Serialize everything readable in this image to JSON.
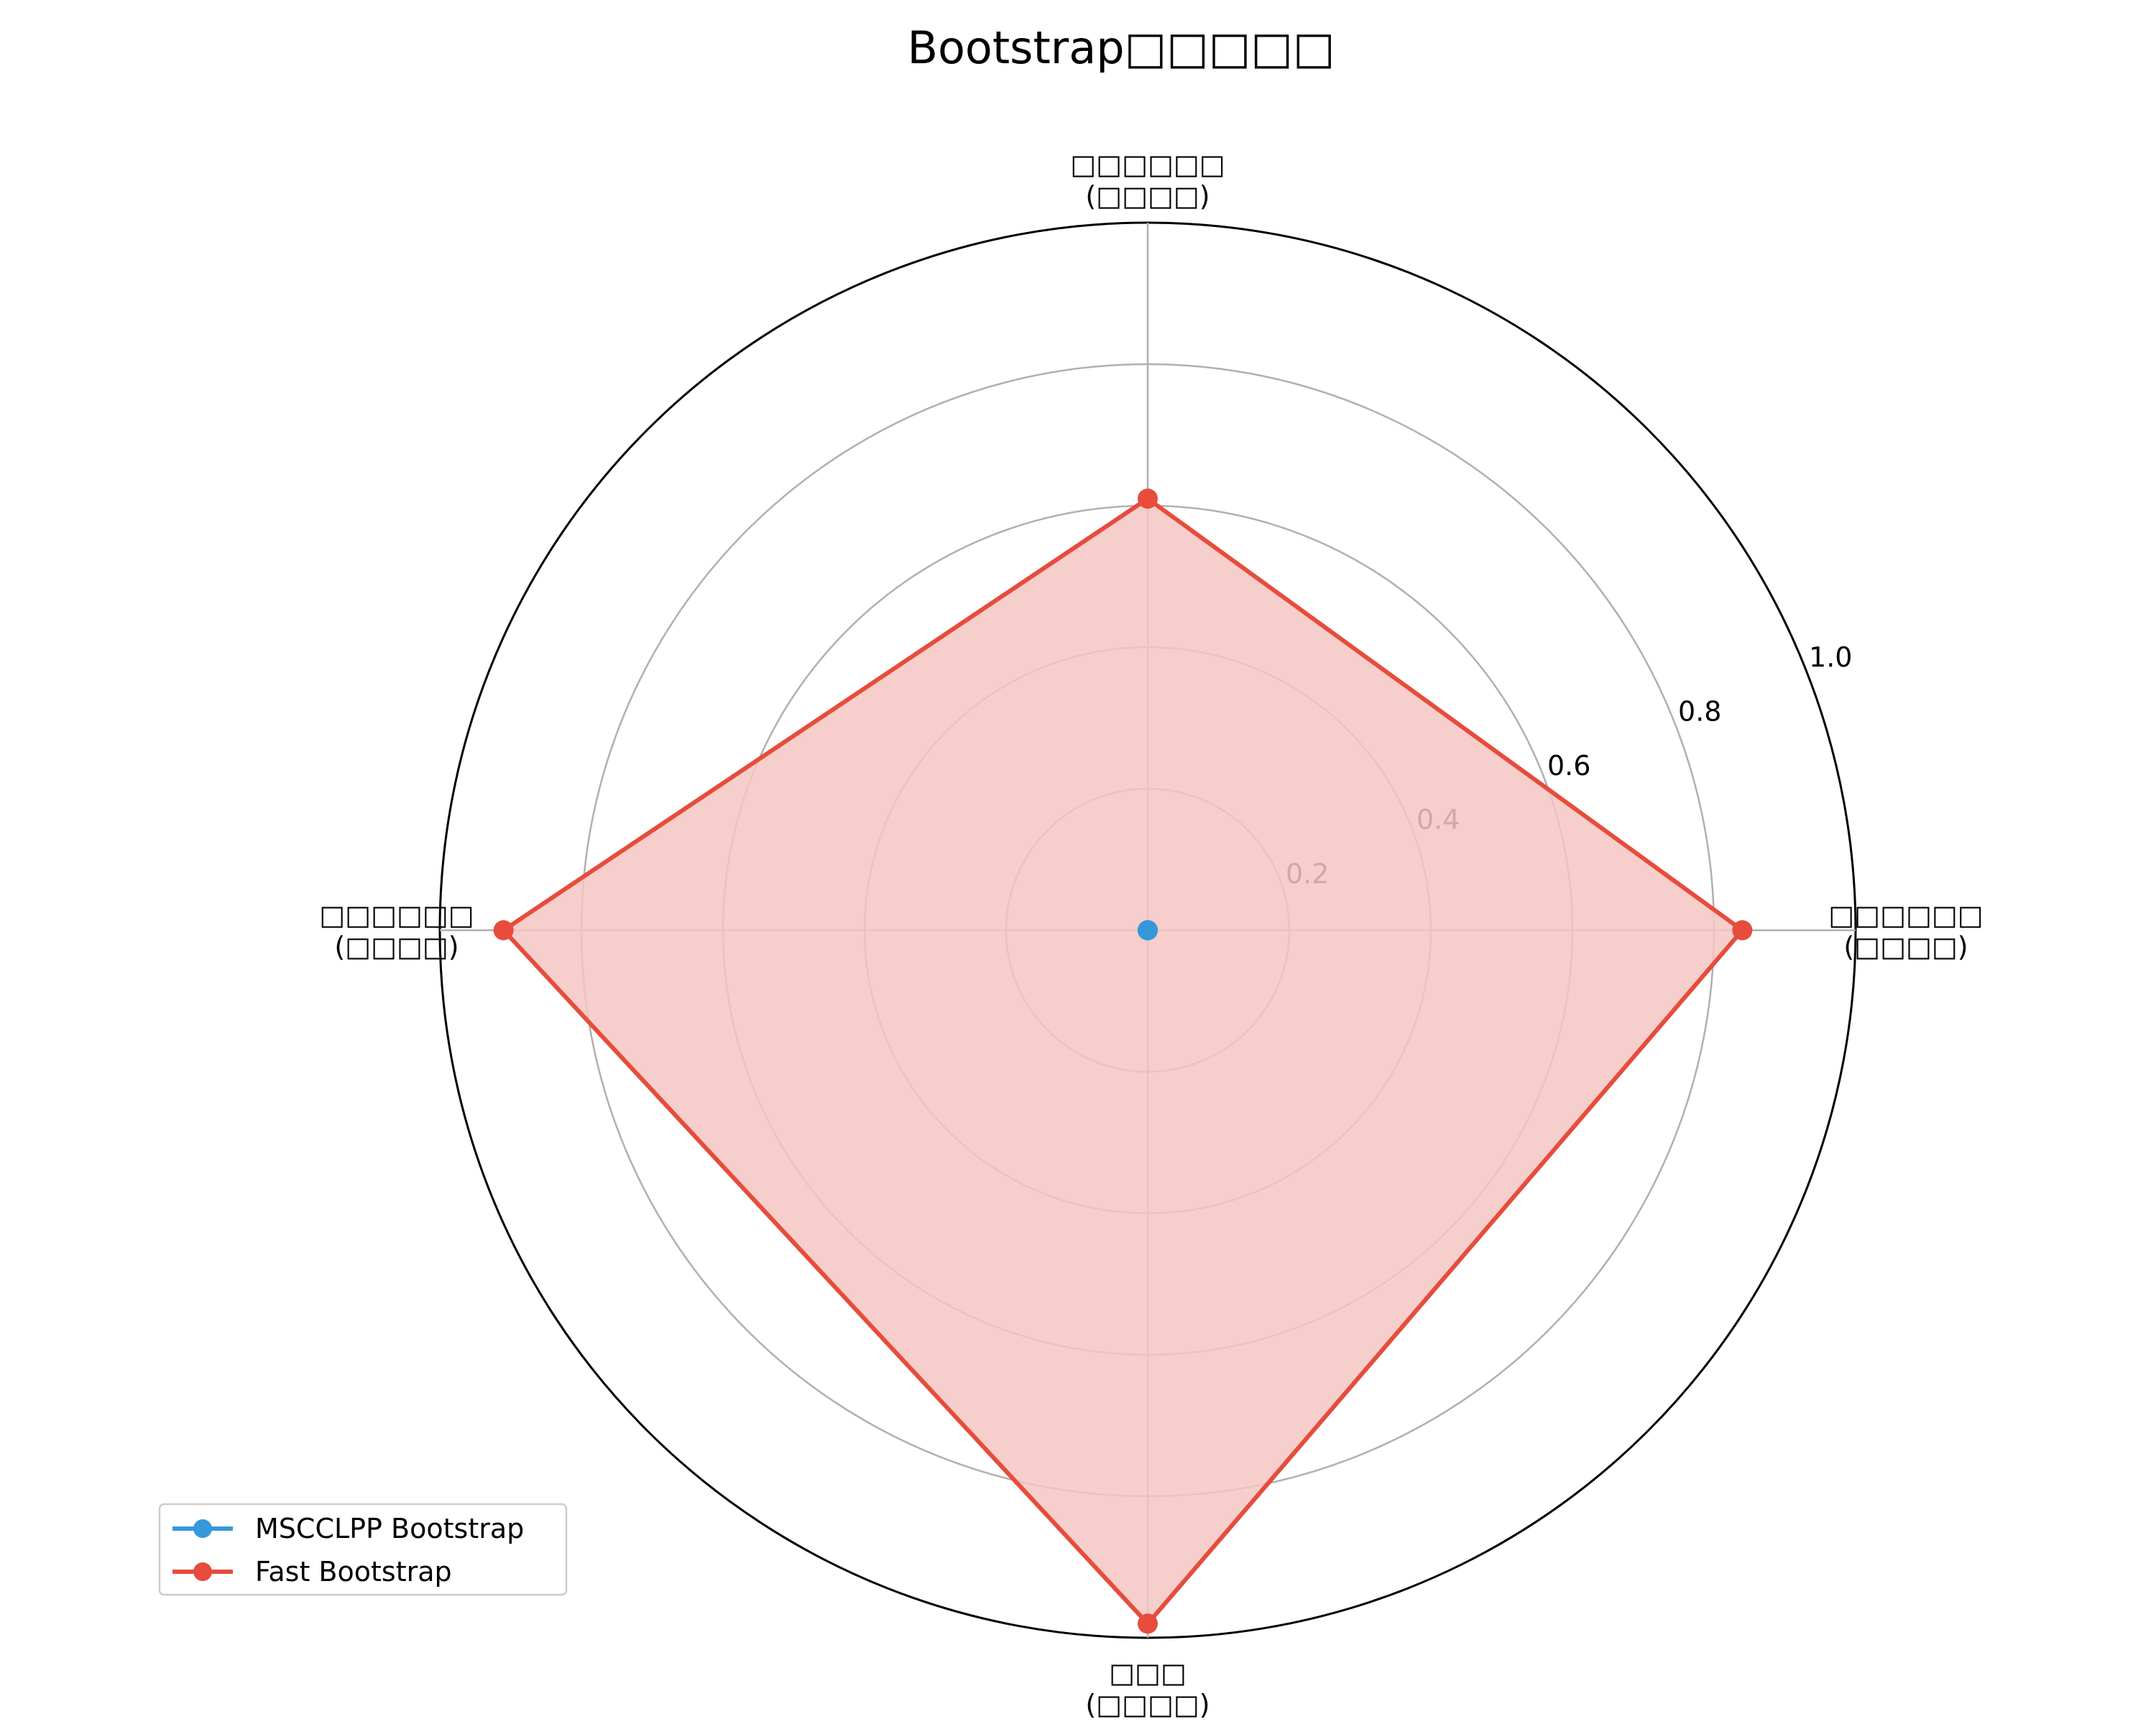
{
  "chart_data": {
    "type": "radar",
    "title": "Bootstrap□□□□□",
    "axes": [
      {
        "line1": "□□□□□□",
        "line2": "(□□□□)"
      },
      {
        "line1": "□□□□□□",
        "line2": "(□□□□)"
      },
      {
        "line1": "□□□",
        "line2": "(□□□□)"
      },
      {
        "line1": "□□□□□□",
        "line2": "(□□□□)"
      }
    ],
    "axis_order_note": "right, top, bottom, left",
    "rlim": [
      0,
      1.0
    ],
    "rticks": [
      "0.2",
      "0.4",
      "0.6",
      "0.8",
      "1.0"
    ],
    "series": [
      {
        "name": "MSCCLPP Bootstrap",
        "color": "#3498db",
        "values": [
          0,
          0,
          0,
          0
        ]
      },
      {
        "name": "Fast Bootstrap",
        "color": "#e74c3c",
        "fill": "#f5c6c2",
        "values": [
          0.84,
          0.61,
          0.98,
          0.91
        ]
      }
    ],
    "legend_position": "lower-left",
    "grid": true
  }
}
